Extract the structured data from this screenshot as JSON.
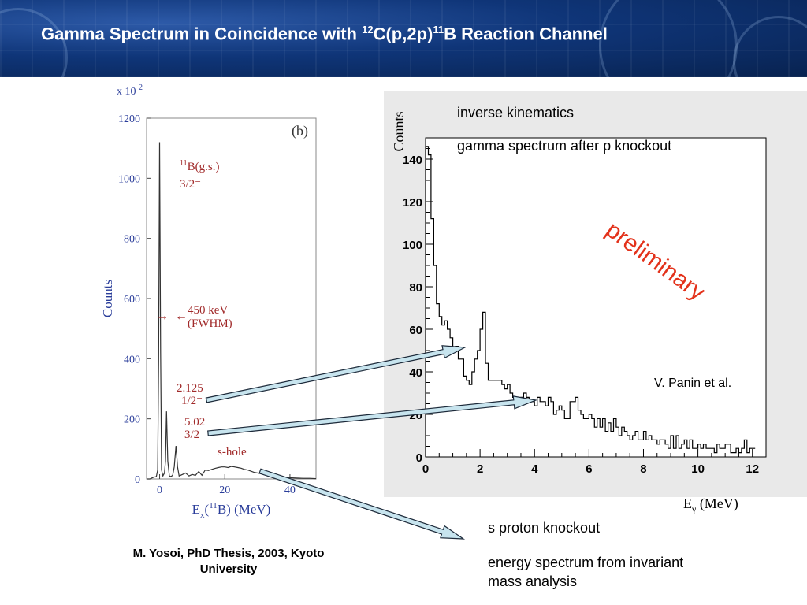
{
  "slide": {
    "title": {
      "pre": "Gamma Spectrum in Coincidence with ",
      "sup1": "12",
      "mid": "C(p,2p)",
      "sup2": "11",
      "post": "B Reaction Channel"
    },
    "citation": "M. Yosoi, PhD Thesis, 2003, Kyoto University",
    "annotations": {
      "inverse": "inverse kinematics",
      "gamma": "gamma spectrum after p knockout",
      "preliminary": "preliminary",
      "panin": "V. Panin et al.",
      "sproton": "s proton knockout",
      "energy": "energy spectrum from invariant mass analysis"
    },
    "colors": {
      "left_axis": "#2a3d9a",
      "left_label": "#a12a2a",
      "preliminary": "#e3321b",
      "header": "#0f3578"
    }
  },
  "chart_data": [
    {
      "type": "line",
      "panel_label": "(b)",
      "multiplier": "x 10",
      "multiplier_exp": "2",
      "xlabel": {
        "pre": "E",
        "sub": "x",
        "mid": "(",
        "sup": "11",
        "post": "B)  (MeV)"
      },
      "ylabel": "Counts",
      "xlim": [
        -4,
        48
      ],
      "ylim": [
        0,
        1200
      ],
      "x_ticks": [
        0,
        20,
        40
      ],
      "y_ticks": [
        0,
        200,
        400,
        600,
        800,
        1000,
        1200
      ],
      "annotations": {
        "gs_name": "B(g.s.)",
        "gs_sup": "11",
        "gs_spin": "3/2⁻",
        "arrow_left": "→",
        "arrow_right": "←",
        "resolution": "450 keV",
        "fwhm": "(FWHM)",
        "e1": "2.125",
        "s1": "1/2⁻",
        "e2": "5.02",
        "s2": "3/2⁻",
        "shole": "s-hole"
      },
      "series": [
        {
          "x": [
            -4,
            -3,
            -2,
            -1,
            -0.6,
            -0.3,
            0,
            0.3,
            0.6,
            1,
            1.5,
            1.8,
            2.125,
            2.5,
            3,
            3.5,
            4,
            4.5,
            5.02,
            5.5,
            6,
            7,
            8,
            9,
            10,
            11,
            12,
            13,
            14,
            15,
            16,
            17,
            18,
            19,
            20,
            21,
            22,
            23,
            24,
            25,
            26,
            27,
            28,
            29,
            30,
            31,
            32,
            33,
            34,
            35,
            36,
            37,
            38,
            40,
            42,
            44,
            46,
            48
          ],
          "y": [
            0,
            0,
            5,
            8,
            30,
            400,
            1120,
            420,
            30,
            10,
            20,
            60,
            225,
            60,
            10,
            8,
            12,
            40,
            110,
            40,
            10,
            15,
            20,
            10,
            15,
            12,
            25,
            12,
            30,
            28,
            32,
            35,
            38,
            40,
            40,
            38,
            42,
            40,
            38,
            36,
            32,
            30,
            26,
            22,
            20,
            18,
            15,
            12,
            10,
            9,
            8,
            6,
            5,
            4,
            3,
            2,
            2,
            1
          ]
        }
      ]
    },
    {
      "type": "line",
      "ylabel": "Counts",
      "xlabel": {
        "pre": "E",
        "sub": "γ",
        "post": "(MeV)"
      },
      "xlim": [
        0,
        12.5
      ],
      "ylim": [
        0,
        150
      ],
      "x_ticks": [
        0,
        2,
        4,
        6,
        8,
        10,
        12
      ],
      "y_ticks": [
        0,
        20,
        40,
        60,
        80,
        100,
        120,
        140
      ],
      "series": [
        {
          "bin_width": 0.1,
          "x_start": 0,
          "values": [
            146,
            142,
            112,
            90,
            72,
            66,
            62,
            64,
            60,
            56,
            50,
            52,
            46,
            46,
            38,
            36,
            34,
            40,
            46,
            50,
            60,
            68,
            44,
            36,
            36,
            36,
            36,
            36,
            34,
            32,
            34,
            30,
            28,
            28,
            26,
            28,
            30,
            28,
            26,
            26,
            24,
            28,
            26,
            26,
            24,
            28,
            26,
            20,
            22,
            24,
            22,
            18,
            18,
            26,
            26,
            28,
            22,
            20,
            18,
            18,
            20,
            18,
            14,
            18,
            14,
            18,
            12,
            16,
            12,
            18,
            14,
            10,
            14,
            12,
            10,
            8,
            10,
            12,
            8,
            8,
            12,
            8,
            10,
            8,
            8,
            6,
            8,
            8,
            6,
            4,
            10,
            4,
            10,
            4,
            6,
            8,
            4,
            8,
            4,
            4,
            6,
            4,
            6,
            4,
            4,
            4,
            2,
            6,
            4,
            4,
            6,
            6,
            2,
            2,
            4,
            2,
            4,
            8,
            2,
            4,
            4
          ]
        }
      ]
    }
  ]
}
